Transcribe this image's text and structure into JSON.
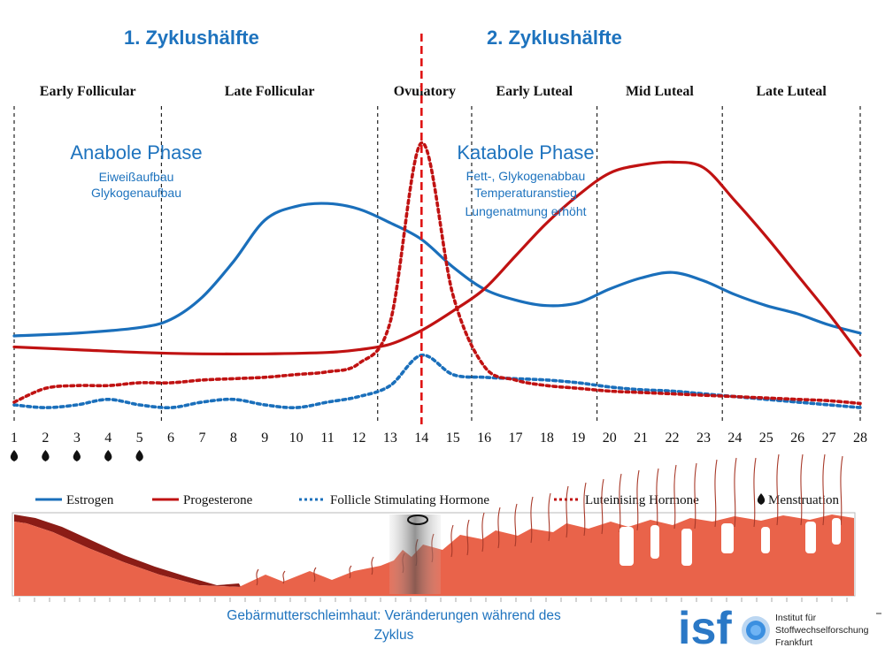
{
  "halves": {
    "first": "1. Zyklushälfte",
    "second": "2. Zyklushälfte"
  },
  "anabole": {
    "title": "Anabole Phase",
    "line1": "Eiweißaufbau",
    "line2": "Glykogenaufbau"
  },
  "katabole": {
    "title": "Katabole Phase",
    "line1": "Fett-, Glykogenabbau",
    "line2": "Temperaturanstieg",
    "line3": "Lungenatmung erhöht"
  },
  "caption": {
    "line1": "Gebärmutterschleimhaut: Veränderungen während des",
    "line2": "Zyklus"
  },
  "logo": {
    "mark": "isf",
    "line1": "Institut für",
    "line2": "Stoffwechselforschung",
    "line3": "Frankfurt"
  },
  "colors": {
    "estrogen": "#1a6fbb",
    "progesterone": "#c01212",
    "fsh": "#1a6fbb",
    "lh": "#c01212",
    "ovulation": "#e01414",
    "endometrium": "#e9634a"
  },
  "chart_data": {
    "type": "line",
    "title": "",
    "xlabel": "",
    "ylabel": "",
    "x_ticks": [
      1,
      2,
      3,
      4,
      5,
      6,
      7,
      8,
      9,
      10,
      11,
      12,
      13,
      14,
      15,
      16,
      17,
      18,
      19,
      20,
      21,
      22,
      23,
      24,
      25,
      26,
      27,
      28
    ],
    "xlim": [
      1,
      28
    ],
    "ylim": [
      0,
      100
    ],
    "phases": [
      {
        "name": "Early Follicular",
        "start": 1,
        "end": 5.7
      },
      {
        "name": "Late Follicular",
        "start": 5.7,
        "end": 12.6
      },
      {
        "name": "Ovulatory",
        "start": 12.6,
        "end": 15.6
      },
      {
        "name": "Early Luteal",
        "start": 15.6,
        "end": 19.6
      },
      {
        "name": "Mid Luteal",
        "start": 19.6,
        "end": 23.6
      },
      {
        "name": "Late Luteal",
        "start": 23.6,
        "end": 28
      }
    ],
    "ovulation_day": 14,
    "menstruation_days": [
      1,
      2,
      3,
      4,
      5
    ],
    "legend_position": "bottom",
    "series": [
      {
        "name": "Estrogen",
        "style": "solid",
        "points": [
          [
            1,
            25
          ],
          [
            3,
            26
          ],
          [
            5,
            28
          ],
          [
            6,
            31
          ],
          [
            7,
            39
          ],
          [
            8,
            52
          ],
          [
            9,
            67
          ],
          [
            10,
            72
          ],
          [
            11,
            73
          ],
          [
            12,
            71
          ],
          [
            13,
            66
          ],
          [
            14,
            60
          ],
          [
            15,
            50
          ],
          [
            16,
            42
          ],
          [
            17,
            38
          ],
          [
            18,
            36
          ],
          [
            19,
            37
          ],
          [
            20,
            42
          ],
          [
            21,
            46
          ],
          [
            22,
            48
          ],
          [
            23,
            45
          ],
          [
            24,
            40
          ],
          [
            25,
            36
          ],
          [
            26,
            33
          ],
          [
            27,
            29
          ],
          [
            28,
            26
          ]
        ]
      },
      {
        "name": "Progesterone",
        "style": "solid",
        "points": [
          [
            1,
            21
          ],
          [
            3,
            20
          ],
          [
            5,
            19
          ],
          [
            7,
            18.5
          ],
          [
            9,
            18.5
          ],
          [
            11,
            19
          ],
          [
            12,
            20
          ],
          [
            13,
            22
          ],
          [
            14,
            27
          ],
          [
            15,
            34
          ],
          [
            16,
            42
          ],
          [
            17,
            54
          ],
          [
            18,
            66
          ],
          [
            19,
            76
          ],
          [
            20,
            84
          ],
          [
            21,
            87
          ],
          [
            22,
            88
          ],
          [
            23,
            86
          ],
          [
            24,
            74
          ],
          [
            25,
            61
          ],
          [
            26,
            47
          ],
          [
            27,
            33
          ],
          [
            28,
            18
          ]
        ]
      },
      {
        "name": "Follicle Stimulating Hormone",
        "style": "dotted",
        "points": [
          [
            1,
            0
          ],
          [
            2,
            -1
          ],
          [
            3,
            0
          ],
          [
            4,
            2
          ],
          [
            5,
            0
          ],
          [
            6,
            -1
          ],
          [
            7,
            1
          ],
          [
            8,
            2
          ],
          [
            9,
            0
          ],
          [
            10,
            -1
          ],
          [
            11,
            1
          ],
          [
            12,
            3
          ],
          [
            13,
            7
          ],
          [
            14,
            18
          ],
          [
            15,
            11
          ],
          [
            16,
            10
          ],
          [
            17,
            9.5
          ],
          [
            18,
            9
          ],
          [
            19,
            8
          ],
          [
            20,
            6.5
          ],
          [
            21,
            5.5
          ],
          [
            22,
            5
          ],
          [
            23,
            4
          ],
          [
            24,
            3
          ],
          [
            25,
            2
          ],
          [
            26,
            1
          ],
          [
            27,
            0
          ],
          [
            28,
            -1
          ]
        ]
      },
      {
        "name": "Luteinising Hormone",
        "style": "dotted",
        "points": [
          [
            1,
            1
          ],
          [
            2,
            6
          ],
          [
            3,
            7
          ],
          [
            4,
            7
          ],
          [
            5,
            8
          ],
          [
            6,
            8
          ],
          [
            7,
            9
          ],
          [
            8,
            9.5
          ],
          [
            9,
            10
          ],
          [
            10,
            11
          ],
          [
            11,
            12
          ],
          [
            12,
            15
          ],
          [
            13,
            30
          ],
          [
            14,
            95
          ],
          [
            15,
            40
          ],
          [
            16,
            14
          ],
          [
            17,
            9
          ],
          [
            18,
            7
          ],
          [
            19,
            6
          ],
          [
            20,
            5
          ],
          [
            21,
            4.5
          ],
          [
            22,
            4
          ],
          [
            23,
            3.5
          ],
          [
            24,
            3
          ],
          [
            25,
            2.5
          ],
          [
            26,
            2
          ],
          [
            27,
            1.5
          ],
          [
            28,
            0.5
          ]
        ]
      }
    ],
    "legend": [
      {
        "name": "Estrogen",
        "style": "solid",
        "color": "#1a6fbb"
      },
      {
        "name": "Progesterone",
        "style": "solid",
        "color": "#c01212"
      },
      {
        "name": "Follicle Stimulating Hormone",
        "style": "dotted",
        "color": "#1a6fbb"
      },
      {
        "name": "Luteinising Hormone",
        "style": "dotted",
        "color": "#c01212"
      },
      {
        "name": "Menstruation",
        "style": "drop",
        "color": "#111111"
      }
    ]
  }
}
